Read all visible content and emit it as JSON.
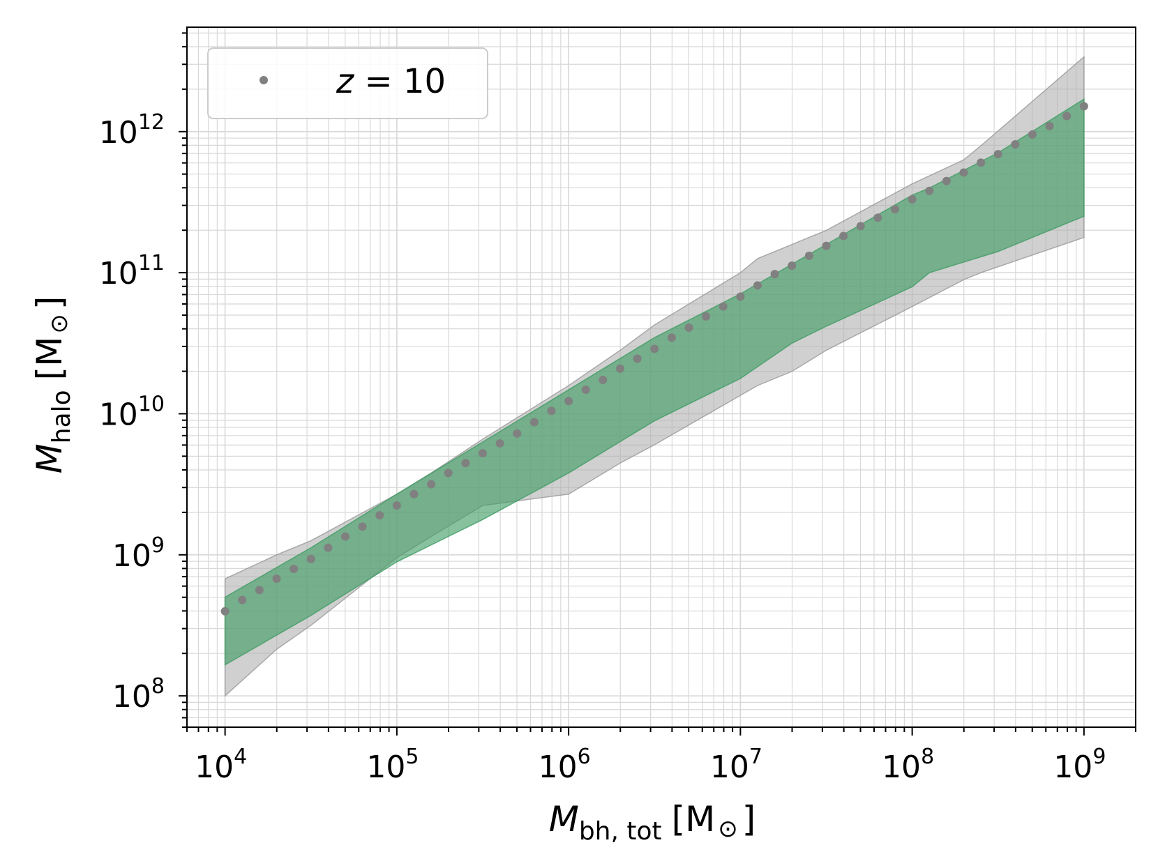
{
  "chart_data": {
    "type": "scatter",
    "x_scale": "log",
    "y_scale": "log",
    "xlim": [
      6000,
      2000000000
    ],
    "ylim": [
      60000000,
      5500000000000
    ],
    "grid": "both",
    "legend_position": "upper left",
    "xlabel": {
      "symbol": "M",
      "subscript": "bh, tot",
      "unit": "[M",
      "unit_sub": "⊙",
      "unit_close": "]"
    },
    "ylabel": {
      "symbol": "M",
      "subscript": "halo",
      "unit": "[M",
      "unit_sub": "⊙",
      "unit_close": "]"
    },
    "x_ticks": [
      {
        "base": "10",
        "exp": "4",
        "value": 10000
      },
      {
        "base": "10",
        "exp": "5",
        "value": 100000
      },
      {
        "base": "10",
        "exp": "6",
        "value": 1000000
      },
      {
        "base": "10",
        "exp": "7",
        "value": 10000000
      },
      {
        "base": "10",
        "exp": "8",
        "value": 100000000
      },
      {
        "base": "10",
        "exp": "9",
        "value": 1000000000
      }
    ],
    "y_ticks": [
      {
        "base": "10",
        "exp": "8",
        "value": 100000000
      },
      {
        "base": "10",
        "exp": "9",
        "value": 1000000000
      },
      {
        "base": "10",
        "exp": "10",
        "value": 10000000000
      },
      {
        "base": "10",
        "exp": "11",
        "value": 100000000000
      },
      {
        "base": "10",
        "exp": "12",
        "value": 1000000000000
      }
    ],
    "series": [
      {
        "name": "z = 10",
        "legend_label": {
          "var": "z",
          "rest": " = 10"
        },
        "color": "#808080",
        "marker": "circle",
        "x_log10": [
          4.0,
          4.1,
          4.2,
          4.3,
          4.4,
          4.5,
          4.6,
          4.7,
          4.8,
          4.9,
          5.0,
          5.1,
          5.2,
          5.3,
          5.4,
          5.5,
          5.6,
          5.7,
          5.8,
          5.9,
          6.0,
          6.1,
          6.2,
          6.3,
          6.4,
          6.5,
          6.6,
          6.7,
          6.8,
          6.9,
          7.0,
          7.1,
          7.2,
          7.3,
          7.4,
          7.5,
          7.6,
          7.7,
          7.8,
          7.9,
          8.0,
          8.1,
          8.2,
          8.3,
          8.4,
          8.5,
          8.6,
          8.7,
          8.8,
          8.9,
          9.0
        ],
        "y_log10": [
          8.6,
          8.68,
          8.75,
          8.83,
          8.9,
          8.97,
          9.05,
          9.13,
          9.2,
          9.28,
          9.35,
          9.43,
          9.5,
          9.58,
          9.65,
          9.72,
          9.79,
          9.86,
          9.94,
          10.02,
          10.09,
          10.17,
          10.24,
          10.32,
          10.39,
          10.46,
          10.54,
          10.61,
          10.69,
          10.76,
          10.83,
          10.91,
          10.99,
          11.05,
          11.12,
          11.19,
          11.26,
          11.33,
          11.39,
          11.45,
          11.52,
          11.58,
          11.65,
          11.71,
          11.78,
          11.84,
          11.91,
          11.98,
          12.04,
          12.11,
          12.18
        ]
      }
    ],
    "bands": [
      {
        "name": "outer",
        "fill": "#b0b0b0",
        "fill_opacity": 0.6,
        "edge": "#999999",
        "x_log10": [
          4.0,
          4.3,
          4.5,
          5.0,
          5.2,
          5.5,
          6.0,
          6.3,
          6.5,
          7.0,
          7.1,
          7.3,
          7.5,
          8.0,
          8.3,
          8.4,
          9.0
        ],
        "upper_log10": [
          8.83,
          9.0,
          9.1,
          9.43,
          9.58,
          9.82,
          10.2,
          10.45,
          10.63,
          11.0,
          11.1,
          11.2,
          11.3,
          11.63,
          11.8,
          11.9,
          12.53
        ],
        "lower_log10": [
          8.0,
          8.33,
          8.5,
          8.98,
          9.13,
          9.35,
          9.43,
          9.65,
          9.78,
          10.13,
          10.2,
          10.3,
          10.45,
          10.76,
          10.95,
          11.0,
          11.25
        ]
      },
      {
        "name": "inner",
        "fill": "#3d9b62",
        "fill_opacity": 0.62,
        "edge": "#3d9b62",
        "x_log10": [
          4.0,
          4.5,
          5.0,
          5.5,
          6.0,
          6.5,
          7.0,
          7.3,
          7.5,
          8.0,
          8.1,
          8.5,
          9.0
        ],
        "upper_log10": [
          8.7,
          9.05,
          9.43,
          9.8,
          10.17,
          10.54,
          10.85,
          11.06,
          11.2,
          11.55,
          11.6,
          11.85,
          12.23
        ],
        "lower_log10": [
          8.22,
          8.57,
          8.95,
          9.25,
          9.58,
          9.95,
          10.25,
          10.5,
          10.62,
          10.9,
          11.0,
          11.15,
          11.4
        ]
      }
    ]
  }
}
